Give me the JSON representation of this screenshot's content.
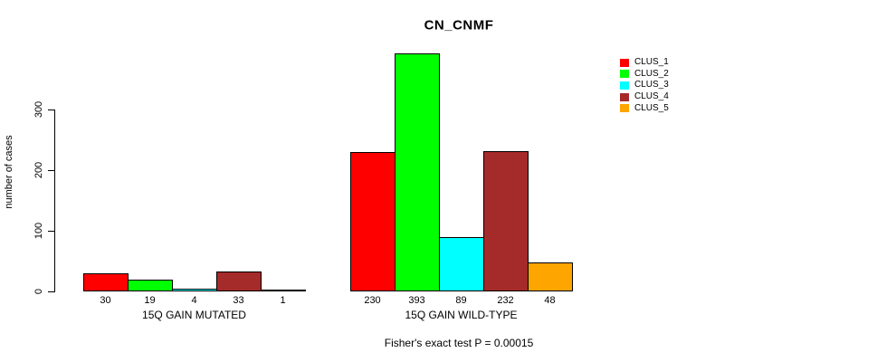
{
  "page": {
    "background": "#ffffff"
  },
  "chart_data": {
    "type": "bar",
    "title": "CN_CNMF",
    "ylabel": "number of cases",
    "xlabel": "",
    "ylim": [
      0,
      400
    ],
    "yticks": [
      0,
      100,
      200,
      300
    ],
    "grid": false,
    "categories": [
      "15Q GAIN MUTATED",
      "15Q GAIN WILD-TYPE"
    ],
    "series": [
      {
        "name": "CLUS_1",
        "color": "#ff0000",
        "values": [
          30,
          230
        ]
      },
      {
        "name": "CLUS_2",
        "color": "#00ff00",
        "values": [
          19,
          393
        ]
      },
      {
        "name": "CLUS_3",
        "color": "#00ffff",
        "values": [
          4,
          89
        ]
      },
      {
        "name": "CLUS_4",
        "color": "#a52a2a",
        "values": [
          33,
          232
        ]
      },
      {
        "name": "CLUS_5",
        "color": "#ffa500",
        "values": [
          1,
          48
        ]
      }
    ],
    "bar_value_labels": [
      [
        "30",
        "19",
        "4",
        "33",
        "1"
      ],
      [
        "230",
        "393",
        "89",
        "232",
        "48"
      ]
    ],
    "legend": {
      "position": "right",
      "entries": [
        "CLUS_1",
        "CLUS_2",
        "CLUS_3",
        "CLUS_4",
        "CLUS_5"
      ]
    },
    "annotation": "Fisher's exact test P = 0.00015"
  }
}
